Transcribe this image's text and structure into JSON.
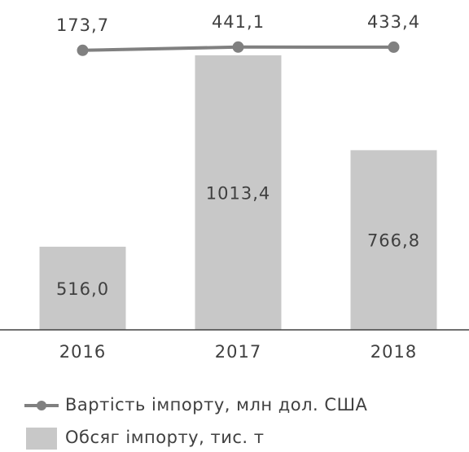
{
  "chart_data": {
    "type": "bar",
    "categories": [
      "2016",
      "2017",
      "2018"
    ],
    "series": [
      {
        "name": "Обсяг імпорту, тис. т",
        "type": "bar",
        "color": "#c8c8c8",
        "values": [
          516.0,
          1013.4,
          766.8
        ],
        "value_labels": [
          "516,0",
          "1013,4",
          "766,8"
        ]
      },
      {
        "name": "Вартість імпорту, млн дол. США",
        "type": "line",
        "axis": "y2",
        "color": "#808080",
        "values": [
          173.7,
          441.1,
          433.4
        ],
        "value_labels": [
          "173,7",
          "441,1",
          "433,4"
        ]
      }
    ],
    "ylim": [
      300,
      1157
    ],
    "y2lim": [
      -22750,
      4300
    ],
    "legend": "bottom"
  }
}
